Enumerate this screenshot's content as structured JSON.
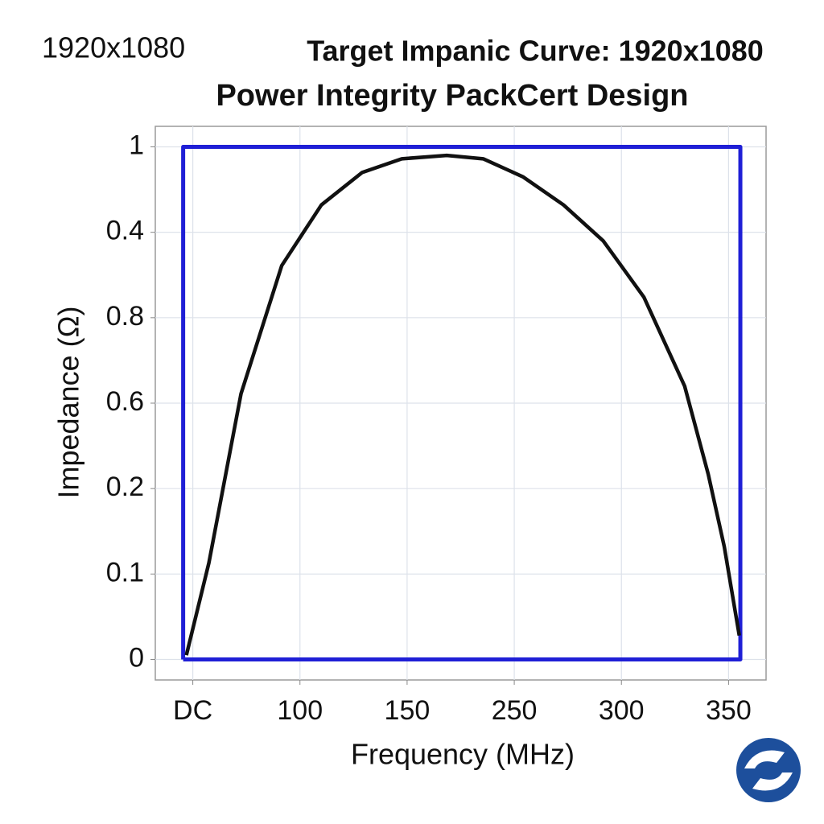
{
  "corner_text": "1920x1080",
  "chart_data": {
    "type": "line",
    "title": "Target Impanic Curve: 1920x1080",
    "subtitle": "Power Integrity PackCert Design",
    "xlabel": "Frequency (MHz)",
    "ylabel": "Impedance (Ω)",
    "xlim": [
      -0.35,
      5.35
    ],
    "ylim": [
      -0.24,
      6.24
    ],
    "xticks": [
      {
        "value": 0,
        "label": "DC"
      },
      {
        "value": 1,
        "label": "100"
      },
      {
        "value": 2,
        "label": "150"
      },
      {
        "value": 3,
        "label": "250"
      },
      {
        "value": 4,
        "label": "300"
      },
      {
        "value": 5,
        "label": "350"
      }
    ],
    "yticks": [
      {
        "value": 0,
        "label": "0"
      },
      {
        "value": 1,
        "label": "0.1"
      },
      {
        "value": 2,
        "label": "0.2"
      },
      {
        "value": 3,
        "label": "0.6"
      },
      {
        "value": 4,
        "label": "0.8"
      },
      {
        "value": 5,
        "label": "0.4"
      },
      {
        "value": 6,
        "label": "1"
      }
    ],
    "grid": true,
    "series": [
      {
        "color": "#1f1fd6",
        "x": [
          -0.09,
          -0.09,
          5.11,
          5.11,
          -0.09
        ],
        "values": [
          0,
          6,
          6,
          0,
          0
        ]
      },
      {
        "color": "#111111",
        "x": [
          -0.06,
          0.15,
          0.45,
          0.83,
          1.2,
          1.58,
          1.95,
          2.37,
          2.71,
          3.08,
          3.46,
          3.83,
          4.21,
          4.59,
          4.81,
          4.96,
          5.1
        ],
        "values": [
          0.05,
          1.13,
          3.11,
          4.61,
          5.32,
          5.7,
          5.86,
          5.9,
          5.86,
          5.65,
          5.32,
          4.9,
          4.24,
          3.2,
          2.17,
          1.32,
          0.28
        ]
      }
    ]
  }
}
